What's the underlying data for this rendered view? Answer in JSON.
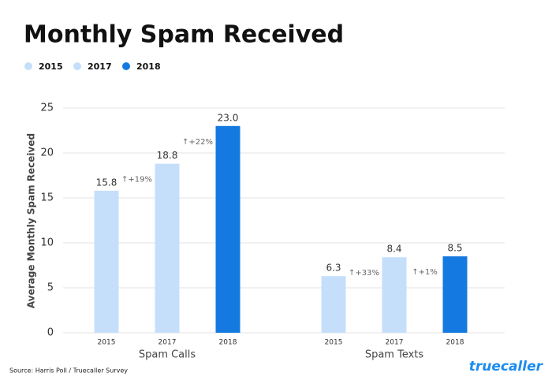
{
  "chart_data": {
    "type": "bar",
    "title": "Monthly Spam Received",
    "y_label": "Average Monthly Spam Received",
    "source": "Source: Harris Poll / Truecaller Survey",
    "brand": "truecaller",
    "categories": [
      "Spam Calls",
      "Spam Texts"
    ],
    "series": [
      {
        "name": "2015",
        "color": "#c5dffb",
        "values": [
          15.8,
          6.3
        ]
      },
      {
        "name": "2017",
        "color": "#c5dffb",
        "values": [
          18.8,
          8.4
        ]
      },
      {
        "name": "2018",
        "color": "#1479e0",
        "values": [
          23.0,
          8.5
        ],
        "value_labels": [
          "23.0",
          "8.5"
        ]
      }
    ],
    "annotations": [
      [
        "↑+19%",
        "↑+22%"
      ],
      [
        "↑+33%",
        "↑+1%"
      ]
    ],
    "ylim": [
      0,
      25
    ],
    "yticks": [
      0,
      5,
      10,
      15,
      20,
      25
    ],
    "grid": true
  }
}
